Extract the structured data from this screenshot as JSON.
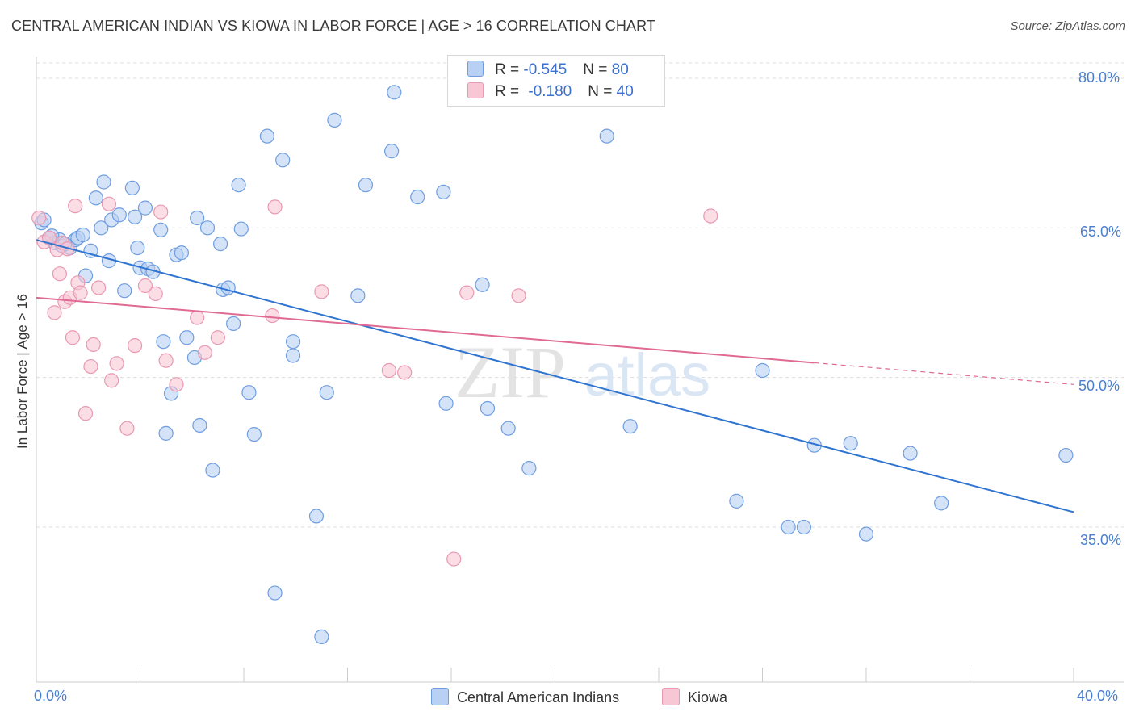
{
  "title": "CENTRAL AMERICAN INDIAN VS KIOWA IN LABOR FORCE | AGE > 16 CORRELATION CHART",
  "source": "Source: ZipAtlas.com",
  "watermark": {
    "zip": "ZIP",
    "atlas": "atlas"
  },
  "legend": {
    "rows": [
      {
        "r_label": "R = ",
        "r_value": "-0.545",
        "n_label": "N = ",
        "n_value": "80"
      },
      {
        "r_label": "R = ",
        "r_value": "-0.180",
        "n_label": "N = ",
        "n_value": "40"
      }
    ]
  },
  "bottom_legend": [
    "Central American Indians",
    "Kiowa"
  ],
  "colors": {
    "blue_fill": "#b8d0f3",
    "blue_stroke": "#6f9ee0",
    "blue_line": "#2f74d0",
    "pink_fill": "#f8c7d6",
    "pink_stroke": "#e999b2",
    "pink_line": "#e06a93",
    "grid": "#dcdcdc",
    "tick_text": "#4a7fd0"
  },
  "chart_data": {
    "type": "scatter",
    "title": "CENTRAL AMERICAN INDIAN VS KIOWA IN LABOR FORCE | AGE > 16 CORRELATION CHART",
    "xlabel": "",
    "ylabel": "In Labor Force | Age > 16",
    "xlim": [
      0,
      40
    ],
    "ylim": [
      20,
      82
    ],
    "x_tick_labels": [
      "0.0%",
      "40.0%"
    ],
    "y_ticks": [
      35,
      50,
      65,
      80
    ],
    "y_tick_labels": [
      "35.0%",
      "50.0%",
      "65.0%",
      "80.0%"
    ],
    "grid": true,
    "legend_position": "top-center",
    "series": [
      {
        "name": "Central American Indians",
        "r": -0.545,
        "n": 80,
        "trend": {
          "x": [
            0,
            40
          ],
          "y": [
            63.8,
            36.5
          ],
          "dashed_from": null
        },
        "points": [
          [
            0.2,
            65.5
          ],
          [
            0.5,
            64.0
          ],
          [
            0.7,
            63.5
          ],
          [
            0.9,
            63.8
          ],
          [
            1.0,
            63.2
          ],
          [
            1.3,
            63.0
          ],
          [
            1.5,
            63.8
          ],
          [
            1.6,
            64.0
          ],
          [
            1.8,
            64.3
          ],
          [
            1.9,
            60.2
          ],
          [
            2.1,
            62.7
          ],
          [
            2.3,
            68.0
          ],
          [
            2.5,
            65.0
          ],
          [
            2.6,
            69.6
          ],
          [
            2.8,
            61.7
          ],
          [
            2.9,
            65.8
          ],
          [
            3.2,
            66.3
          ],
          [
            3.4,
            58.7
          ],
          [
            3.7,
            69.0
          ],
          [
            3.8,
            66.1
          ],
          [
            3.9,
            63.0
          ],
          [
            4.0,
            61.0
          ],
          [
            4.2,
            67.0
          ],
          [
            4.3,
            60.9
          ],
          [
            4.5,
            60.6
          ],
          [
            4.8,
            64.8
          ],
          [
            4.9,
            53.6
          ],
          [
            5.0,
            44.4
          ],
          [
            5.2,
            48.4
          ],
          [
            5.4,
            62.3
          ],
          [
            5.6,
            62.5
          ],
          [
            5.8,
            54.0
          ],
          [
            6.1,
            52.0
          ],
          [
            6.2,
            66.0
          ],
          [
            6.3,
            45.2
          ],
          [
            6.6,
            65.0
          ],
          [
            6.8,
            40.7
          ],
          [
            7.1,
            63.4
          ],
          [
            7.2,
            58.8
          ],
          [
            7.4,
            59.0
          ],
          [
            7.6,
            55.4
          ],
          [
            7.8,
            69.3
          ],
          [
            7.9,
            64.9
          ],
          [
            8.2,
            48.5
          ],
          [
            8.4,
            44.3
          ],
          [
            8.9,
            74.2
          ],
          [
            9.2,
            28.4
          ],
          [
            9.5,
            71.8
          ],
          [
            9.9,
            53.6
          ],
          [
            9.9,
            52.2
          ],
          [
            10.8,
            36.1
          ],
          [
            11.0,
            24.0
          ],
          [
            11.2,
            48.5
          ],
          [
            11.5,
            75.8
          ],
          [
            12.4,
            58.2
          ],
          [
            12.7,
            69.3
          ],
          [
            13.7,
            72.7
          ],
          [
            13.8,
            78.6
          ],
          [
            14.7,
            68.1
          ],
          [
            15.7,
            68.6
          ],
          [
            15.8,
            47.4
          ],
          [
            17.2,
            59.3
          ],
          [
            17.4,
            46.9
          ],
          [
            18.2,
            44.9
          ],
          [
            19.0,
            40.9
          ],
          [
            22.0,
            74.2
          ],
          [
            22.9,
            45.1
          ],
          [
            27.0,
            37.6
          ],
          [
            28.0,
            50.7
          ],
          [
            29.0,
            35.0
          ],
          [
            29.6,
            35.0
          ],
          [
            30.0,
            43.2
          ],
          [
            31.4,
            43.4
          ],
          [
            32.0,
            34.3
          ],
          [
            33.7,
            42.4
          ],
          [
            34.9,
            37.4
          ],
          [
            39.7,
            42.2
          ],
          [
            0.3,
            65.8
          ],
          [
            1.1,
            63.4
          ],
          [
            0.6,
            64.2
          ]
        ]
      },
      {
        "name": "Kiowa",
        "r": -0.18,
        "n": 40,
        "trend": {
          "x": [
            0,
            40
          ],
          "y": [
            58.0,
            49.3
          ],
          "dashed_from": 30.0
        },
        "points": [
          [
            0.1,
            66.0
          ],
          [
            0.3,
            63.6
          ],
          [
            0.5,
            64.0
          ],
          [
            0.7,
            56.5
          ],
          [
            0.8,
            62.8
          ],
          [
            0.9,
            60.4
          ],
          [
            1.0,
            63.5
          ],
          [
            1.1,
            57.6
          ],
          [
            1.3,
            58.0
          ],
          [
            1.4,
            54.0
          ],
          [
            1.5,
            67.2
          ],
          [
            1.6,
            59.5
          ],
          [
            1.7,
            58.5
          ],
          [
            1.9,
            46.4
          ],
          [
            2.1,
            51.1
          ],
          [
            2.2,
            53.3
          ],
          [
            2.4,
            59.0
          ],
          [
            2.8,
            67.4
          ],
          [
            2.9,
            49.7
          ],
          [
            3.1,
            51.4
          ],
          [
            3.5,
            44.9
          ],
          [
            3.8,
            53.2
          ],
          [
            4.2,
            59.2
          ],
          [
            4.6,
            58.4
          ],
          [
            4.8,
            66.6
          ],
          [
            5.0,
            51.7
          ],
          [
            5.4,
            49.3
          ],
          [
            6.2,
            56.0
          ],
          [
            6.5,
            52.5
          ],
          [
            7.0,
            54.0
          ],
          [
            9.1,
            56.2
          ],
          [
            9.2,
            67.1
          ],
          [
            11.0,
            58.6
          ],
          [
            13.6,
            50.7
          ],
          [
            14.2,
            50.5
          ],
          [
            16.1,
            31.8
          ],
          [
            16.6,
            58.5
          ],
          [
            18.6,
            58.2
          ],
          [
            26.0,
            66.2
          ],
          [
            1.2,
            62.9
          ]
        ]
      }
    ]
  }
}
